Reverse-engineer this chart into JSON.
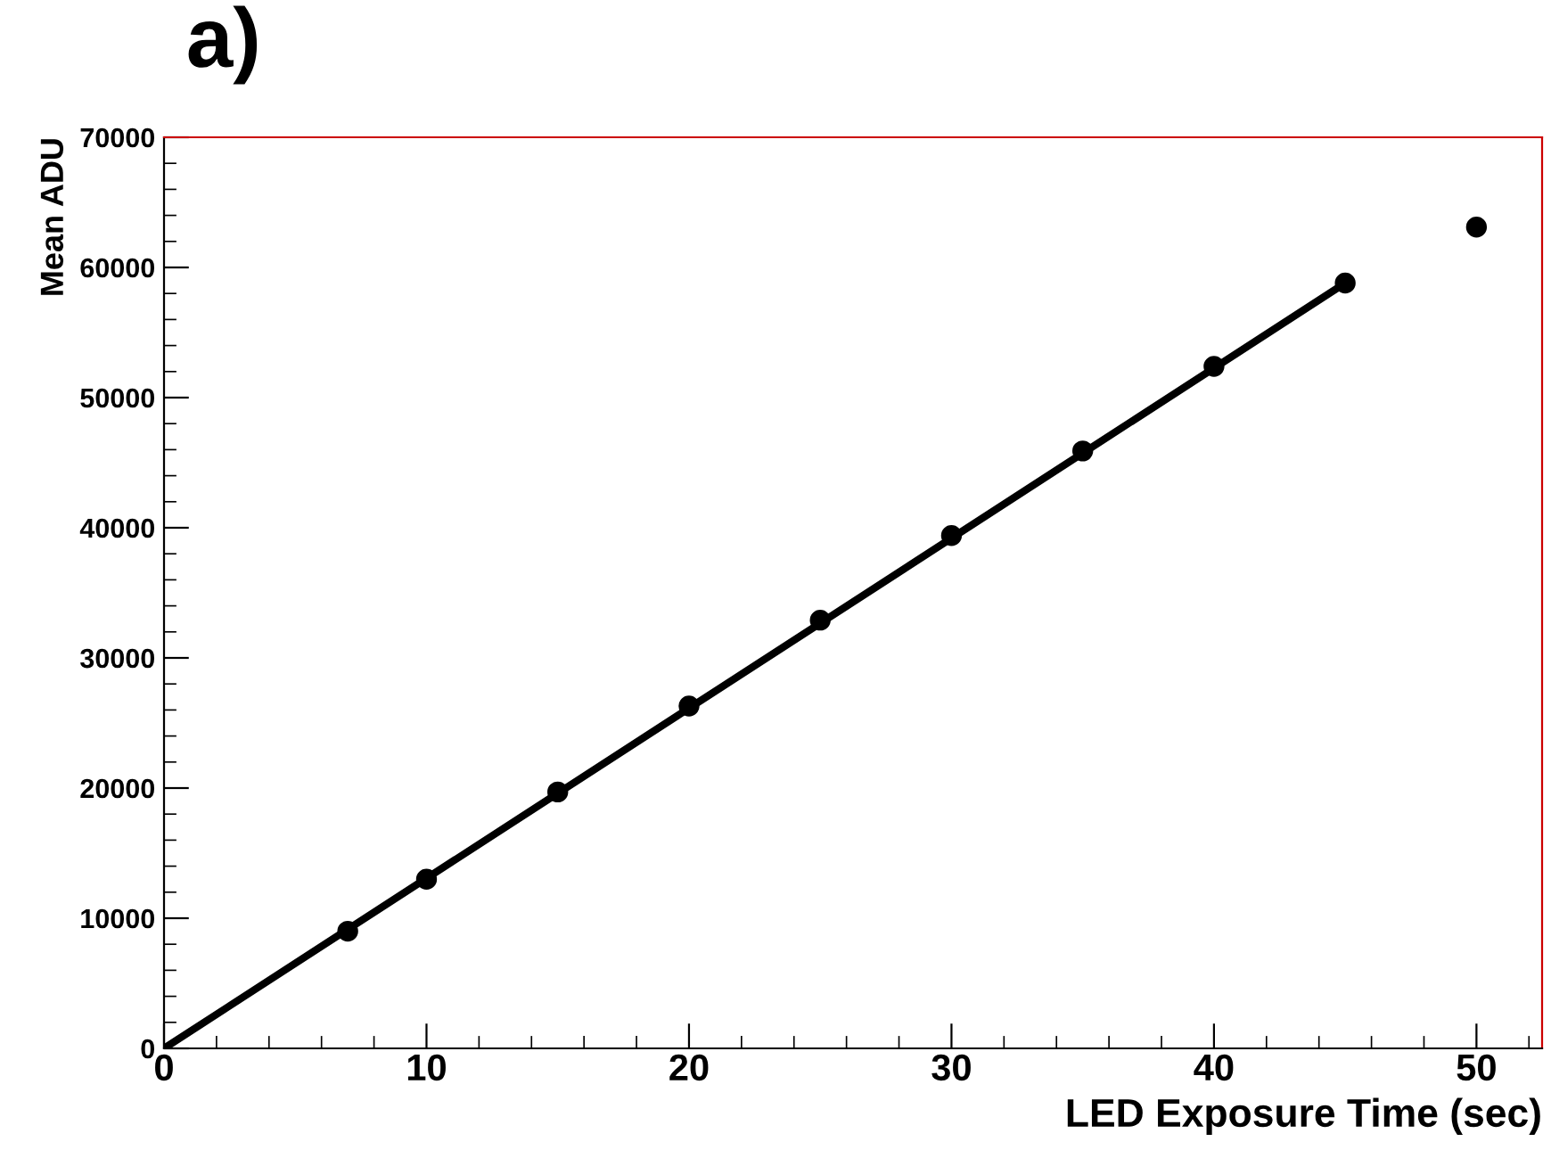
{
  "chart_data": {
    "type": "scatter",
    "title": "a)",
    "xlabel": "LED Exposure Time (sec)",
    "ylabel": "Mean ADU",
    "series": [
      {
        "color": "#000000",
        "marker": "circle",
        "x": [
          7,
          10,
          15,
          20,
          25,
          30,
          35,
          40,
          45,
          50
        ],
        "values": [
          9000,
          13000,
          19700,
          26300,
          32900,
          39400,
          45900,
          52400,
          58800,
          63100
        ]
      },
      {
        "type": "line",
        "color": "#000000",
        "marker": "none",
        "line_style": "solid",
        "x": [
          0,
          45
        ],
        "values": [
          0,
          58800
        ]
      }
    ],
    "xlim": [
      0,
      52.5
    ],
    "ylim": [
      0,
      70000
    ],
    "xticks": [
      0,
      10,
      20,
      30,
      40,
      50
    ],
    "yticks": [
      0,
      10000,
      20000,
      30000,
      40000,
      50000,
      60000,
      70000
    ],
    "grid": false,
    "legend": false
  }
}
